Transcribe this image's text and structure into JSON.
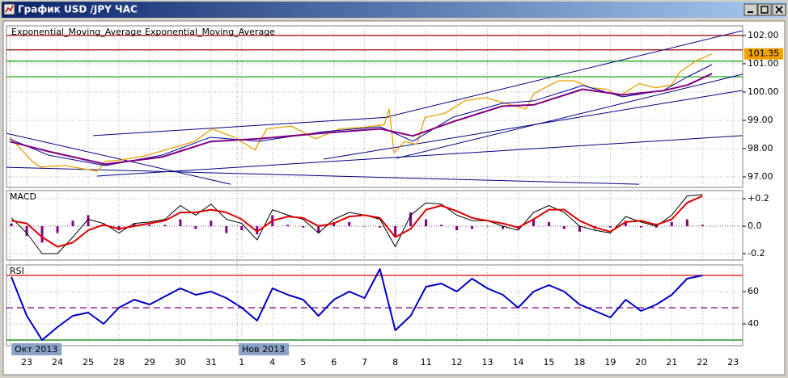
{
  "window_title": "График USD /JPY ЧАС",
  "chart_data": [
    {
      "type": "line",
      "xlim": [
        -0.66,
        23.31
      ],
      "ylim": [
        96.63,
        102.34
      ],
      "yticks": [
        {
          "value": 97,
          "label": "97.00"
        },
        {
          "value": 98,
          "label": "98.00"
        },
        {
          "value": 99,
          "label": "99.00"
        },
        {
          "value": 100,
          "label": "100.00"
        },
        {
          "value": 101,
          "label": "101.00"
        },
        {
          "value": 102,
          "label": "102.00"
        }
      ],
      "grid": true,
      "series": [
        {
          "color": "#e8a000",
          "x": [
            -0.55,
            0.18,
            0.45,
            1.24,
            2.29,
            2.56,
            3.08,
            3.87,
            4.66,
            5.45,
            6.03,
            6.77,
            7.43,
            7.82,
            8.61,
            9.4,
            10.19,
            10.99,
            11.64,
            11.8,
            11.96,
            12.3,
            12.7,
            12.96,
            13.62,
            14.28,
            14.94,
            15.6,
            16.25,
            16.52,
            17.31,
            17.83,
            18.36,
            18.89,
            19.28,
            19.94,
            20.47,
            21.0,
            21.26,
            21.79,
            22.31
          ],
          "values": [
            98.4,
            97.55,
            97.35,
            97.4,
            97.2,
            97.55,
            97.6,
            97.75,
            98.0,
            98.25,
            98.7,
            98.4,
            97.95,
            98.7,
            98.8,
            98.35,
            98.7,
            98.75,
            98.85,
            99.4,
            97.85,
            98.25,
            98.15,
            99.1,
            99.25,
            99.7,
            99.8,
            99.6,
            99.4,
            99.95,
            100.4,
            100.4,
            100.15,
            100.1,
            99.85,
            100.3,
            100.15,
            100.25,
            100.7,
            101.1,
            101.35
          ]
        },
        {
          "name": "Exponential_Moving_Average",
          "color": "#0000a0",
          "x": [
            -0.55,
            0.71,
            2.56,
            4.4,
            5.98,
            7.56,
            9.67,
            11.51,
            12.57,
            13.88,
            15.47,
            16.52,
            18.1,
            19.41,
            20.73,
            21.52,
            22.31
          ],
          "values": [
            98.34,
            97.77,
            97.4,
            97.77,
            98.4,
            98.26,
            98.6,
            98.77,
            98.26,
            99.11,
            99.6,
            99.69,
            100.23,
            99.83,
            100.06,
            100.54,
            100.97
          ]
        },
        {
          "name": "Exponential_Moving_Average",
          "color": "#800080",
          "x": [
            -0.55,
            0.71,
            2.56,
            4.4,
            5.98,
            7.56,
            9.67,
            11.51,
            12.57,
            13.88,
            15.47,
            16.52,
            18.1,
            19.41,
            20.73,
            21.52,
            22.31
          ],
          "values": [
            98.25,
            97.9,
            97.45,
            97.7,
            98.25,
            98.35,
            98.55,
            98.7,
            98.45,
            98.95,
            99.5,
            99.55,
            100.1,
            99.9,
            100.05,
            100.25,
            100.65
          ]
        }
      ],
      "hlines": [
        {
          "value": 102.0,
          "color": "#a00000"
        },
        {
          "value": 101.49,
          "color": "#a00000"
        },
        {
          "value": 101.09,
          "color": "#00a000"
        },
        {
          "value": 100.54,
          "color": "#00a000"
        }
      ],
      "trendlines": [
        {
          "x": [
            11.62,
            23.31
          ],
          "values": [
            99.09,
            102.17
          ],
          "color": "#000080"
        },
        {
          "x": [
            12.04,
            23.31
          ],
          "values": [
            97.66,
            100.63
          ],
          "color": "#000080"
        },
        {
          "x": [
            2.16,
            11.78
          ],
          "values": [
            98.46,
            99.11
          ],
          "color": "#000080"
        },
        {
          "x": [
            -0.66,
            6.64
          ],
          "values": [
            98.54,
            96.74
          ],
          "color": "#000080"
        },
        {
          "x": [
            -0.66,
            19.94
          ],
          "values": [
            97.34,
            96.74
          ],
          "color": "#000080"
        },
        {
          "x": [
            2.29,
            23.31
          ],
          "values": [
            97.03,
            98.46
          ],
          "color": "#000080"
        },
        {
          "x": [
            9.67,
            23.31
          ],
          "values": [
            97.63,
            100.06
          ],
          "color": "#000080"
        }
      ],
      "last_value": 101.35,
      "last_value_color": "#f0a000"
    },
    {
      "type": "line",
      "title": "MACD",
      "xlim": [
        -0.66,
        23.31
      ],
      "ylim": [
        -0.247,
        0.259
      ],
      "yticks": [
        {
          "value": 0.2,
          "label": "+0.2"
        },
        {
          "value": 0,
          "label": "0.0"
        },
        {
          "value": -0.2,
          "label": "-0.2"
        }
      ],
      "grid": true,
      "series": [
        {
          "type": "bar",
          "color": "#800080",
          "x": [
            -0.5,
            0,
            0.5,
            1,
            1.5,
            2,
            2.5,
            3,
            3.5,
            4,
            4.5,
            5,
            5.5,
            6,
            6.5,
            7,
            7.5,
            8,
            8.5,
            9,
            9.5,
            10,
            10.5,
            11,
            11.5,
            12,
            12.5,
            13,
            13.5,
            14,
            14.5,
            15,
            15.5,
            16,
            16.5,
            17,
            17.5,
            18,
            18.5,
            19,
            19.5,
            20,
            20.5,
            21,
            21.5,
            22
          ],
          "values": [
            0.02,
            -0.07,
            -0.12,
            -0.05,
            0.04,
            0.08,
            0.01,
            -0.03,
            0.02,
            0.01,
            0.01,
            0.05,
            -0.02,
            0.04,
            -0.05,
            -0.03,
            -0.06,
            0.08,
            0.01,
            -0.01,
            -0.05,
            0.03,
            0.03,
            0.0,
            -0.01,
            -0.07,
            0.1,
            0.05,
            0.01,
            -0.03,
            -0.02,
            0.0,
            -0.02,
            -0.02,
            0.05,
            0.03,
            -0.02,
            -0.04,
            -0.02,
            -0.01,
            0.04,
            -0.01,
            -0.01,
            0.03,
            0.05,
            0.01
          ]
        },
        {
          "color": "#000000",
          "x": [
            -0.5,
            0,
            0.5,
            1,
            1.5,
            2,
            2.5,
            3,
            3.5,
            4,
            4.5,
            5,
            5.5,
            6,
            6.5,
            7,
            7.5,
            8,
            8.5,
            9,
            9.5,
            10,
            10.5,
            11,
            11.5,
            12,
            12.5,
            13,
            13.5,
            14,
            14.5,
            15,
            15.5,
            16,
            16.5,
            17,
            17.5,
            18,
            18.5,
            19,
            19.5,
            20,
            20.5,
            21,
            21.5,
            22
          ],
          "values": [
            0.06,
            -0.05,
            -0.2,
            -0.2,
            -0.08,
            0.05,
            0.02,
            -0.05,
            0.02,
            0.03,
            0.05,
            0.15,
            0.08,
            0.16,
            0.05,
            0.02,
            -0.1,
            0.12,
            0.08,
            0.05,
            -0.05,
            0.05,
            0.1,
            0.08,
            0.05,
            -0.15,
            0.08,
            0.17,
            0.16,
            0.08,
            0.04,
            0.04,
            0.0,
            -0.03,
            0.1,
            0.15,
            0.1,
            0.0,
            -0.03,
            -0.05,
            0.07,
            0.03,
            0.0,
            0.08,
            0.22,
            0.23
          ]
        },
        {
          "color": "#e00000",
          "x": [
            -0.5,
            0,
            0.5,
            1,
            1.5,
            2,
            2.5,
            3,
            3.5,
            4,
            4.5,
            5,
            5.5,
            6,
            6.5,
            7,
            7.5,
            8,
            8.5,
            9,
            9.5,
            10,
            10.5,
            11,
            11.5,
            12,
            12.5,
            13,
            13.5,
            14,
            14.5,
            15,
            15.5,
            16,
            16.5,
            17,
            17.5,
            18,
            18.5,
            19,
            19.5,
            20,
            20.5,
            21,
            21.5,
            22
          ],
          "values": [
            0.04,
            0.02,
            -0.08,
            -0.15,
            -0.12,
            -0.03,
            0.01,
            -0.02,
            0.0,
            0.02,
            0.04,
            0.1,
            0.1,
            0.12,
            0.1,
            0.05,
            -0.04,
            0.04,
            0.07,
            0.06,
            0.0,
            0.02,
            0.07,
            0.08,
            0.06,
            -0.08,
            -0.02,
            0.12,
            0.15,
            0.11,
            0.06,
            0.04,
            0.02,
            -0.01,
            0.05,
            0.12,
            0.12,
            0.04,
            -0.01,
            -0.04,
            0.03,
            0.04,
            0.01,
            0.05,
            0.17,
            0.22
          ]
        }
      ],
      "hlines": [
        {
          "value": 0,
          "color": "#808080",
          "style": "dotted"
        }
      ]
    },
    {
      "type": "line",
      "title": "RSI",
      "xlim": [
        -0.66,
        23.31
      ],
      "ylim": [
        26.5,
        76.5
      ],
      "yticks": [
        60,
        40
      ],
      "grid": true,
      "series": [
        {
          "color": "#0000c0",
          "x": [
            -0.5,
            0,
            0.5,
            1,
            1.5,
            2,
            2.5,
            3,
            3.5,
            4,
            4.5,
            5,
            5.5,
            6,
            6.5,
            7,
            7.5,
            8,
            8.5,
            9,
            9.5,
            10,
            10.5,
            11,
            11.5,
            12,
            12.5,
            13,
            13.5,
            14,
            14.5,
            15,
            15.5,
            16,
            16.5,
            17,
            17.5,
            18,
            18.5,
            19,
            19.5,
            20,
            20.5,
            21,
            21.5,
            22
          ],
          "values": [
            69,
            45,
            30,
            38,
            45,
            47,
            40,
            50,
            55,
            52,
            57,
            62,
            58,
            60,
            56,
            50,
            42,
            62,
            58,
            55,
            45,
            55,
            60,
            56,
            74,
            36,
            45,
            63,
            65,
            60,
            68,
            62,
            58,
            50,
            60,
            64,
            60,
            52,
            48,
            44,
            55,
            48,
            52,
            58,
            68,
            70
          ]
        }
      ],
      "hlines": [
        {
          "value": 70,
          "color": "#e00000"
        },
        {
          "value": 50,
          "color": "#800080",
          "style": "dashed"
        },
        {
          "value": 30,
          "color": "#008000"
        }
      ],
      "xticks": [
        {
          "value": 0,
          "label": "23"
        },
        {
          "value": 1,
          "label": "24"
        },
        {
          "value": 2,
          "label": "25"
        },
        {
          "value": 3,
          "label": "28"
        },
        {
          "value": 4,
          "label": "29"
        },
        {
          "value": 5,
          "label": "30"
        },
        {
          "value": 6,
          "label": "31"
        },
        {
          "value": 7,
          "label": "1"
        },
        {
          "value": 8,
          "label": "4"
        },
        {
          "value": 9,
          "label": "5"
        },
        {
          "value": 10,
          "label": "6"
        },
        {
          "value": 11,
          "label": "7"
        },
        {
          "value": 12,
          "label": "8"
        },
        {
          "value": 13,
          "label": "11"
        },
        {
          "value": 14,
          "label": "12"
        },
        {
          "value": 15,
          "label": "13"
        },
        {
          "value": 16,
          "label": "14"
        },
        {
          "value": 17,
          "label": "15"
        },
        {
          "value": 18,
          "label": "18"
        },
        {
          "value": 19,
          "label": "19"
        },
        {
          "value": 20,
          "label": "20"
        },
        {
          "value": 21,
          "label": "21"
        },
        {
          "value": 22,
          "label": "22"
        },
        {
          "value": 23,
          "label": "23"
        }
      ],
      "period_labels": [
        {
          "value": -0.55,
          "label": "Окт 2013"
        },
        {
          "value": 6.85,
          "label": "Нов 2013"
        }
      ]
    }
  ]
}
